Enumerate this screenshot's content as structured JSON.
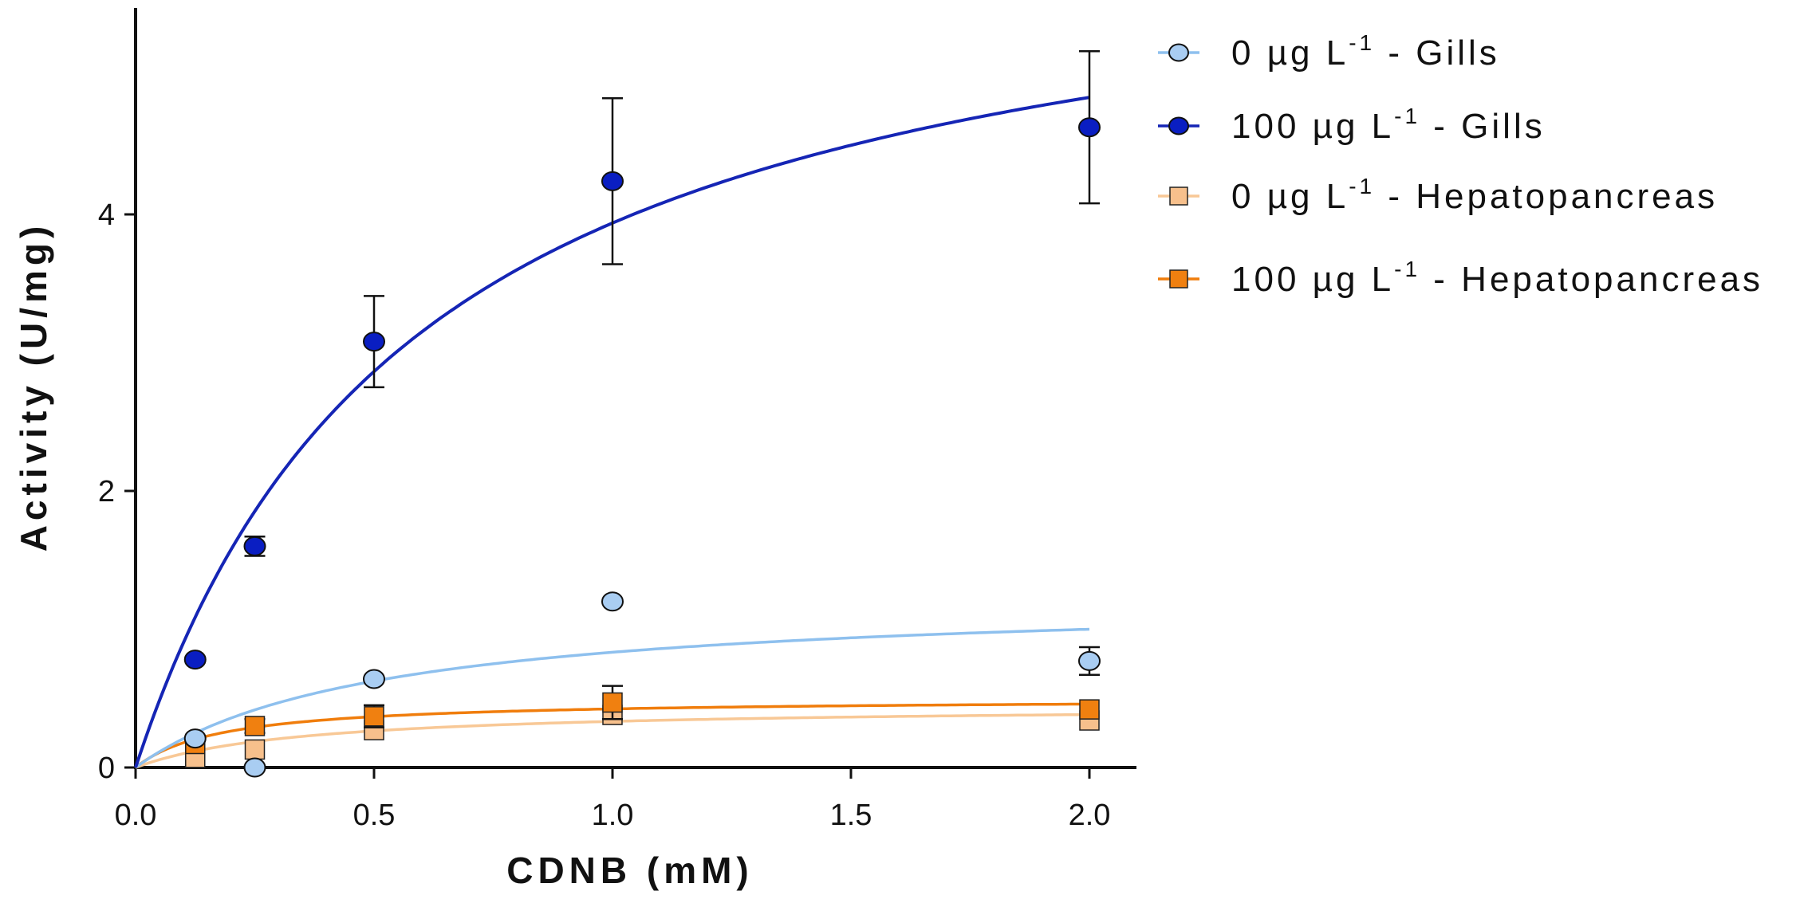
{
  "chart_data": {
    "type": "scatter",
    "title": "",
    "xlabel": "CDNB (mM)",
    "ylabel": "Activity (U/mg)",
    "xlim": [
      0,
      2.1
    ],
    "ylim": [
      0,
      5.5
    ],
    "x_ticks": [
      0,
      0.5,
      1.0,
      1.5,
      2.0
    ],
    "x_tick_labels": [
      "0.0",
      "0.5",
      "1.0",
      "1.5",
      "2.0"
    ],
    "y_ticks": [
      0,
      2,
      4
    ],
    "y_tick_labels": [
      "0",
      "2",
      "4"
    ],
    "legend_position": "top-right, outside plot",
    "series": [
      {
        "name": "0 µg L-1 - Gills",
        "legend_main": "0 µg L",
        "legend_sup": "-1",
        "legend_tail": " - Gills",
        "marker": "circle",
        "fill": "#a9cdf2",
        "line_color": "#8ec0ee",
        "x": [
          0.125,
          0.25,
          0.5,
          1.0,
          2.0
        ],
        "y": [
          0.21,
          0.0,
          0.64,
          1.2,
          0.77
        ],
        "err": [
          0,
          0,
          0,
          0,
          0.1
        ],
        "fit": {
          "vmax": 1.25,
          "km": 0.5
        }
      },
      {
        "name": "100 µg L-1 - Gills",
        "legend_main": "100 µg L",
        "legend_sup": "-1",
        "legend_tail": " - Gills",
        "marker": "circle",
        "fill": "#0a1ec2",
        "line_color": "#1525b5",
        "x": [
          0.125,
          0.25,
          0.5,
          1.0,
          2.0
        ],
        "y": [
          0.78,
          1.6,
          3.08,
          4.24,
          4.63
        ],
        "err": [
          0,
          0.07,
          0.33,
          0.6,
          0.55
        ],
        "fit": {
          "vmax": 6.3,
          "km": 0.6
        }
      },
      {
        "name": "0 µg L-1 - Hepatopancreas",
        "legend_main": "0 µg L",
        "legend_sup": "-1",
        "legend_tail": " - Hepatopancreas",
        "marker": "square",
        "fill": "#f7c08c",
        "line_color": "#f8c896",
        "x": [
          0.125,
          0.25,
          0.5,
          1.0,
          2.0
        ],
        "y": [
          0.07,
          0.13,
          0.27,
          0.38,
          0.34
        ],
        "err": [
          0,
          0,
          0,
          0,
          0
        ],
        "fit": {
          "vmax": 0.45,
          "km": 0.35
        }
      },
      {
        "name": "100 µg L-1 - Hepatopancreas",
        "legend_main": "100 µg L",
        "legend_sup": "-1",
        "legend_tail": " - Hepatopancreas",
        "marker": "square",
        "fill": "#f08010",
        "line_color": "#f07d0c",
        "x": [
          0.125,
          0.25,
          0.5,
          1.0,
          2.0
        ],
        "y": [
          0.17,
          0.3,
          0.37,
          0.47,
          0.42
        ],
        "err": [
          0,
          0.05,
          0.08,
          0.12,
          0
        ],
        "fit": {
          "vmax": 0.5,
          "km": 0.18
        }
      }
    ]
  }
}
